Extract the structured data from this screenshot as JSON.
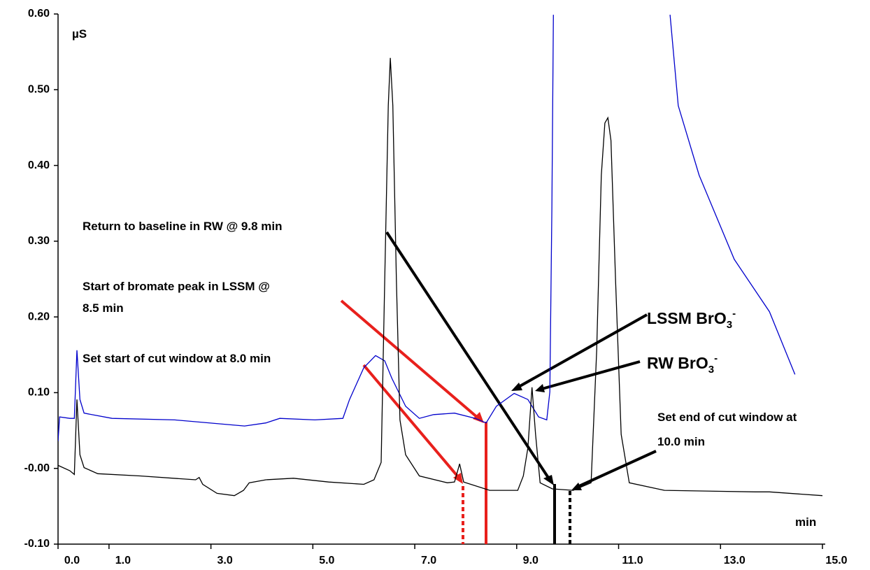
{
  "chart_data": {
    "type": "line",
    "y_label": "µS",
    "x_label": "min",
    "xlim": [
      0,
      15
    ],
    "ylim": [
      -0.1,
      0.6
    ],
    "xticks": [
      {
        "value": 0,
        "label": "0.0"
      },
      {
        "value": 1,
        "label": "1.0"
      },
      {
        "value": 3,
        "label": "3.0"
      },
      {
        "value": 5,
        "label": "5.0"
      },
      {
        "value": 7,
        "label": "7.0"
      },
      {
        "value": 9,
        "label": "9.0"
      },
      {
        "value": 11,
        "label": "11.0"
      },
      {
        "value": 13,
        "label": "13.0"
      },
      {
        "value": 15,
        "label": "15.0"
      }
    ],
    "yticks": [
      {
        "value": -0.1,
        "label": "-0.10"
      },
      {
        "value": 0,
        "label": "-0.00"
      },
      {
        "value": 0.1,
        "label": "0.10"
      },
      {
        "value": 0.2,
        "label": "0.20"
      },
      {
        "value": 0.3,
        "label": "0.30"
      },
      {
        "value": 0.4,
        "label": "0.40"
      },
      {
        "value": 0.5,
        "label": "0.50"
      },
      {
        "value": 0.6,
        "label": "0.60"
      }
    ],
    "series": [
      {
        "color": "#0000cc",
        "x": [
          0.0,
          0.03,
          0.23,
          0.32,
          0.37,
          0.43,
          0.51,
          1.06,
          2.29,
          3.66,
          4.08,
          4.35,
          5.04,
          5.59,
          5.72,
          6.0,
          6.23,
          6.41,
          6.55,
          6.82,
          7.09,
          7.37,
          7.78,
          8.19,
          8.4,
          8.6,
          8.95,
          9.22,
          9.43,
          9.59,
          9.65,
          9.69,
          9.72,
          10.8,
          12.01,
          12.17,
          12.58,
          13.27,
          13.96,
          14.46
        ],
        "values": [
          0.036,
          0.068,
          0.066,
          0.066,
          0.156,
          0.091,
          0.073,
          0.066,
          0.064,
          0.056,
          0.06,
          0.066,
          0.064,
          0.066,
          0.091,
          0.133,
          0.149,
          0.142,
          0.119,
          0.082,
          0.066,
          0.071,
          0.073,
          0.066,
          0.06,
          0.082,
          0.099,
          0.091,
          0.068,
          0.064,
          0.101,
          0.341,
          0.599,
          null,
          0.599,
          0.479,
          0.387,
          0.276,
          0.207,
          0.124
        ]
      },
      {
        "color": "#000000",
        "x": [
          0.0,
          0.23,
          0.32,
          0.37,
          0.43,
          0.51,
          0.78,
          1.61,
          2.7,
          2.77,
          2.84,
          3.12,
          3.46,
          3.64,
          3.75,
          4.08,
          4.62,
          5.31,
          6.0,
          6.2,
          6.34,
          6.41,
          6.48,
          6.52,
          6.57,
          6.64,
          6.71,
          6.82,
          7.09,
          7.64,
          7.78,
          7.88,
          7.96,
          8.47,
          9.02,
          9.13,
          9.22,
          9.3,
          9.37,
          9.46,
          9.7,
          10.11,
          10.46,
          10.57,
          10.66,
          10.73,
          10.79,
          10.85,
          10.94,
          11.05,
          11.21,
          11.9,
          13.68,
          13.96,
          15.0
        ],
        "values": [
          0.004,
          -0.003,
          -0.008,
          0.091,
          0.018,
          0.001,
          -0.007,
          -0.01,
          -0.015,
          -0.012,
          -0.021,
          -0.033,
          -0.036,
          -0.029,
          -0.019,
          -0.015,
          -0.013,
          -0.018,
          -0.021,
          -0.015,
          0.008,
          0.248,
          0.479,
          0.542,
          0.479,
          0.248,
          0.064,
          0.018,
          -0.01,
          -0.019,
          -0.018,
          0.006,
          -0.018,
          -0.029,
          -0.029,
          -0.01,
          0.027,
          0.107,
          0.045,
          -0.019,
          -0.027,
          -0.029,
          -0.019,
          0.156,
          0.387,
          0.456,
          0.463,
          0.433,
          0.248,
          0.045,
          -0.019,
          -0.029,
          -0.031,
          -0.031,
          -0.036
        ]
      }
    ],
    "annotations": [
      [
        "Return to baseline in RW @ 9.8 min"
      ],
      [
        "Start of bromate peak in LSSM @",
        "8.5 min"
      ],
      [
        "Set start of cut window at 8.0 min"
      ],
      [
        "Set end of cut window at",
        "10.0 min"
      ]
    ],
    "peak_labels": [
      [
        "LSSM BrO",
        "3",
        "-"
      ],
      [
        "RW BrO",
        "3",
        "-"
      ]
    ]
  }
}
